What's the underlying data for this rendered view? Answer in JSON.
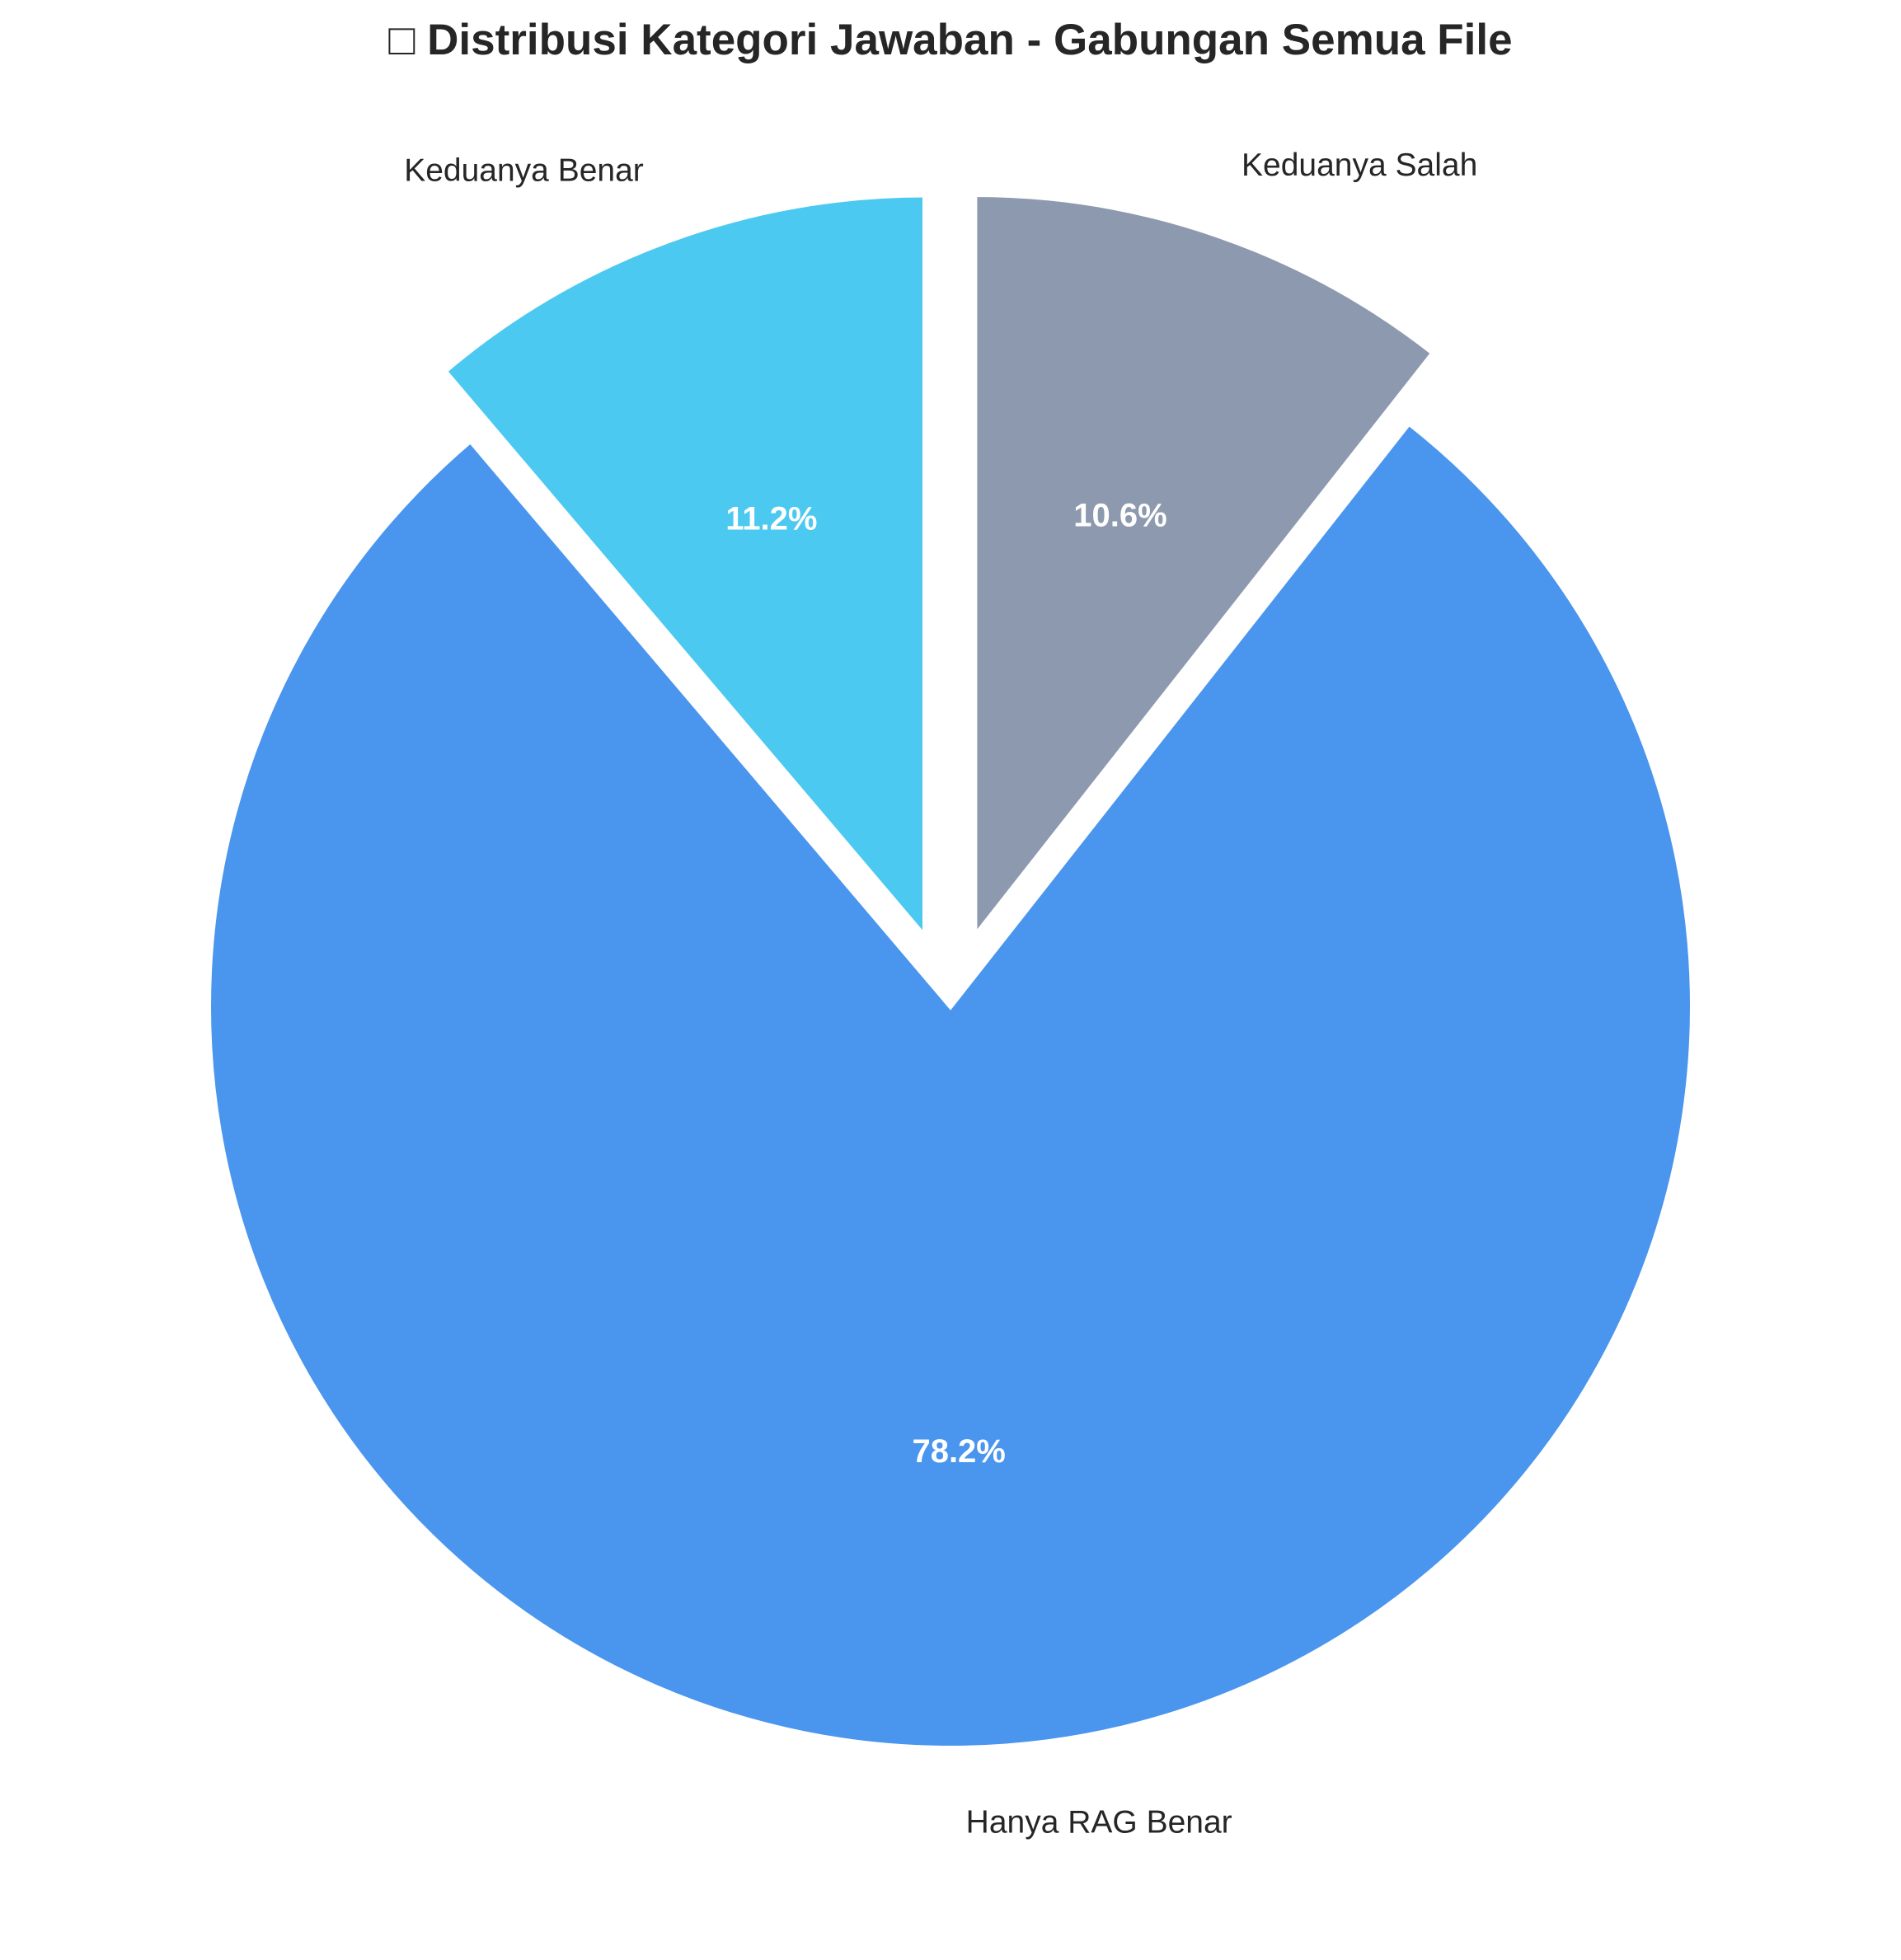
{
  "chart_data": {
    "type": "pie",
    "title": "Distribusi Kategori Jawaban - Gabungan Semua File",
    "title_icon": "chart-emoji-placeholder",
    "start_angle_deg": 90,
    "direction": "counterclockwise",
    "slices": [
      {
        "label": "Keduanya Benar",
        "value": 11.2,
        "pct_label": "11.2%",
        "color": "#4CC9F0",
        "exploded": true
      },
      {
        "label": "Hanya RAG Benar",
        "value": 78.2,
        "pct_label": "78.2%",
        "color": "#4A95EE",
        "exploded": false
      },
      {
        "label": "Keduanya Salah",
        "value": 10.6,
        "pct_label": "10.6%",
        "color": "#8D99AE",
        "exploded": true
      }
    ]
  }
}
